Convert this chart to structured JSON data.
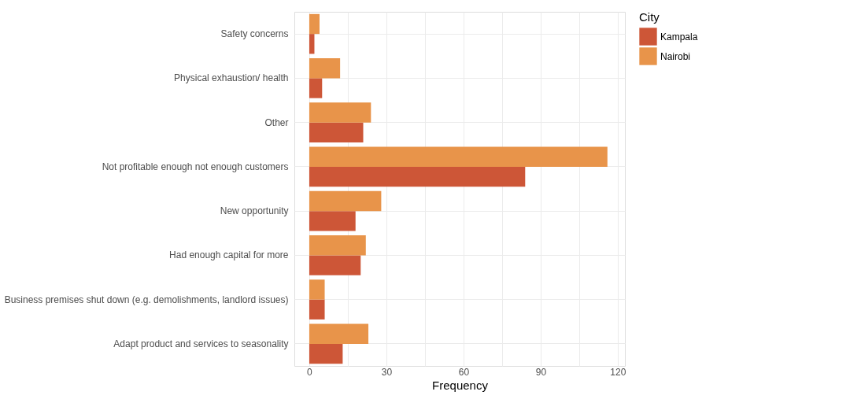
{
  "chart_data": {
    "type": "bar",
    "orientation": "horizontal",
    "xlabel": "Frequency",
    "legend_title": "City",
    "legend": "right",
    "grid": true,
    "categories": [
      "Safety concerns",
      "Physical exhaustion/ health",
      "Other",
      "Not profitable enough not enough customers",
      "New opportunity",
      "Had enough capital for more",
      "Business premises shut down (e.g. demolishments, landlord issues)",
      "Adapt product and services to seasonality"
    ],
    "series": [
      {
        "name": "Kampala",
        "color": "#cd5637",
        "values": [
          2,
          5,
          21,
          84,
          18,
          20,
          6,
          13
        ]
      },
      {
        "name": "Nairobi",
        "color": "#e8944a",
        "values": [
          4,
          12,
          24,
          116,
          28,
          22,
          6,
          23
        ]
      }
    ],
    "xlim": [
      -5.8,
      122.8
    ],
    "xticks": [
      0,
      {
        "value": 15,
        "label": null
      },
      30,
      {
        "value": 45,
        "label": null
      },
      60,
      {
        "value": 75,
        "label": null
      },
      90,
      {
        "value": 105,
        "label": null
      },
      120
    ]
  }
}
